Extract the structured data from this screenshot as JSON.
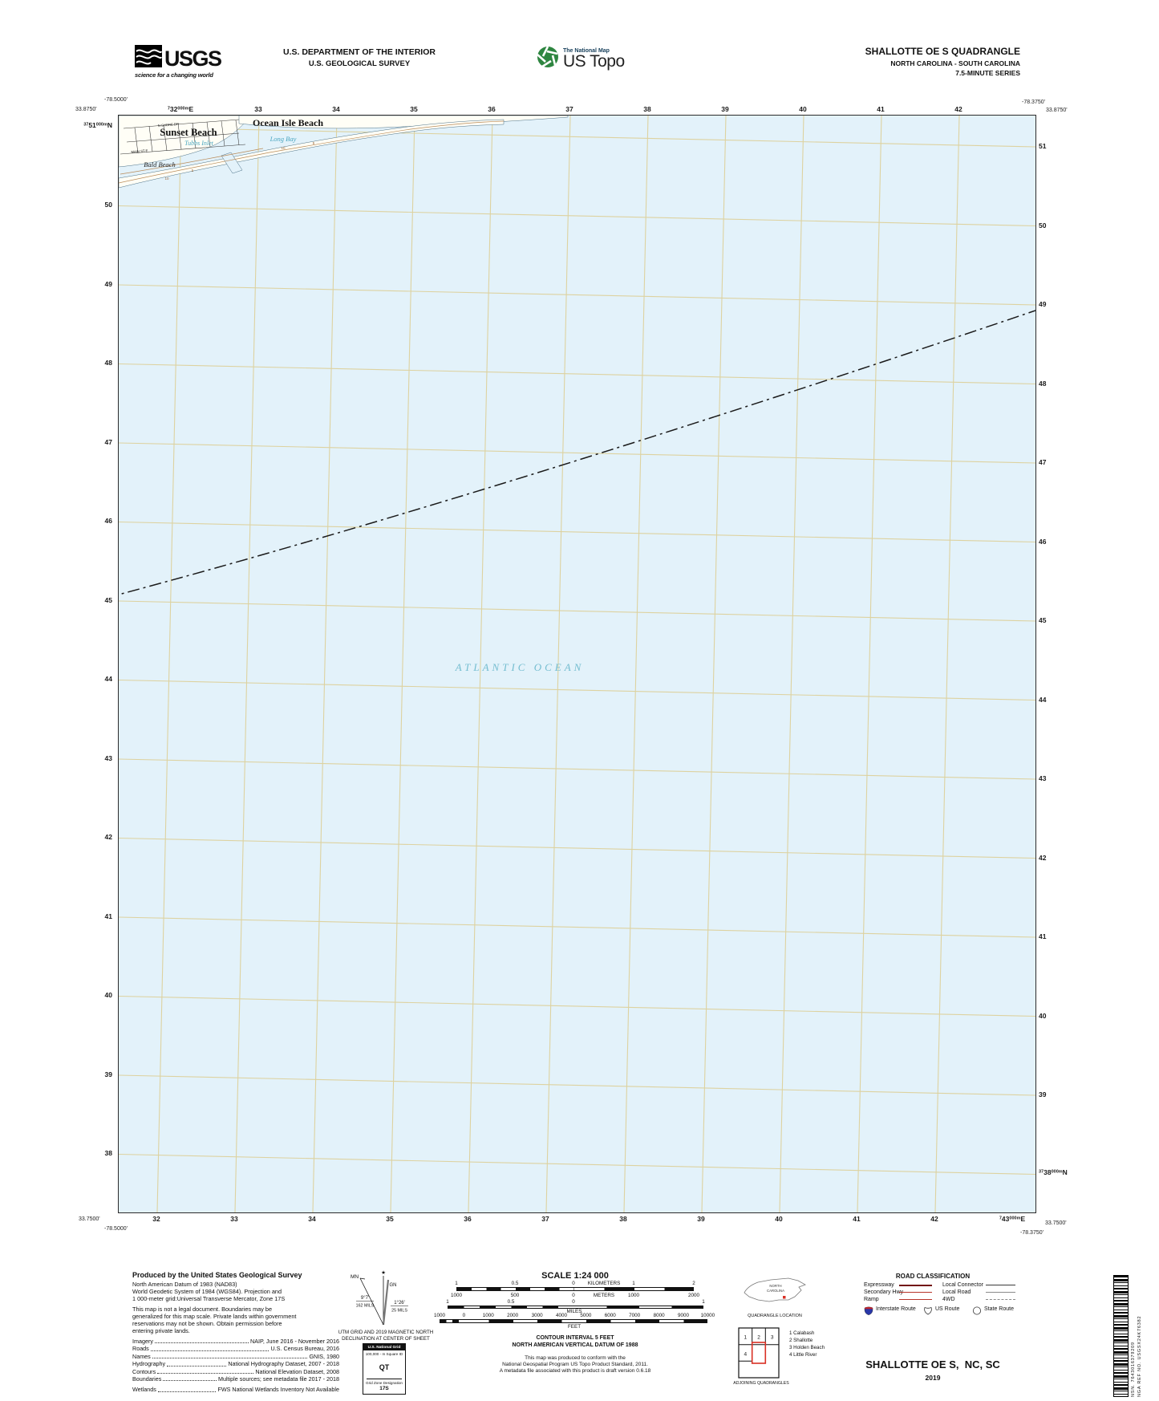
{
  "colors": {
    "ocean": "#e3f2fa",
    "grid_line": "#ddd2a0",
    "water_label": "#4aa6c0",
    "ocean_label": "#74bdd0",
    "contour": "#b98a58",
    "expressway": "#721313",
    "highway_red": "#b8342a",
    "interstate_blue": "#2937a8",
    "quad_red": "#d93025"
  },
  "header": {
    "usgs": {
      "wordmark": "USGS",
      "tagline": "science for a changing world"
    },
    "agency_line1": "U.S. DEPARTMENT OF THE INTERIOR",
    "agency_line2": "U.S. GEOLOGICAL SURVEY",
    "ustopo": {
      "overline": "The National Map",
      "wordmark": "US Topo"
    },
    "quad": {
      "line1": "SHALLOTTE OE S QUADRANGLE",
      "line2": "NORTH CAROLINA - SOUTH CAROLINA",
      "line3": "7.5-MINUTE SERIES"
    }
  },
  "map": {
    "corners": {
      "tl_lon": "-78.5000'",
      "tl_lat": "33.8750'",
      "tr_lon": "-78.3750'",
      "tr_lat": "33.8750'",
      "bl_lat": "33.7500'",
      "bl_lon": "-78.5000'",
      "br_lat": "33.7500'",
      "br_lon": "-78.3750'"
    },
    "grid": {
      "top_first": {
        "p": "7",
        "n": "32",
        "s": "000m",
        "u": "E"
      },
      "top_labels": [
        "33",
        "34",
        "35",
        "36",
        "37",
        "38",
        "39",
        "40",
        "41",
        "42"
      ],
      "bottom_labels": [
        "32",
        "33",
        "34",
        "35",
        "36",
        "37",
        "38",
        "39",
        "40",
        "41",
        "42"
      ],
      "bottom_last": {
        "p": "7",
        "n": "43",
        "s": "000m",
        "u": "E"
      },
      "left_first": {
        "p": "37",
        "n": "51",
        "s": "000m",
        "u": "N"
      },
      "left_labels": [
        "50",
        "49",
        "48",
        "47",
        "46",
        "45",
        "44",
        "43",
        "42",
        "41",
        "40",
        "39",
        "38"
      ],
      "right_labels": [
        "51",
        "50",
        "49",
        "48",
        "47",
        "46",
        "45",
        "44",
        "43",
        "42",
        "41",
        "40",
        "39"
      ],
      "right_last": {
        "p": "37",
        "n": "38",
        "s": "000m",
        "u": "N"
      }
    },
    "features": {
      "ocean_label": "ATLANTIC OCEAN",
      "place_sunset_beach": "Sunset Beach",
      "place_ocean_isle_beach": "Ocean Isle Beach",
      "water_long_bay": "Long Bay",
      "water_tubbs_inlet": "Tubbs Inlet",
      "beach_bald_beach": "Bald Beach",
      "road_n_shore_dr": "N SHORE DR",
      "road_main_st_e": "MAIN ST E",
      "contour_labels": [
        "10",
        "5",
        "10",
        "5"
      ]
    }
  },
  "footer": {
    "credits": {
      "title": "Produced by the United States Geological Survey",
      "datum_lines": [
        "North American Datum of 1983 (NAD83)",
        "World Geodetic System of 1984 (WGS84).  Projection and",
        "1 000-meter grid:Universal Transverse Mercator, Zone 17S"
      ],
      "legal_lines": [
        "This map is not a legal document. Boundaries may be",
        "generalized for this map scale. Private lands within government",
        "reservations may not be shown. Obtain permission before",
        "entering private lands."
      ],
      "sources": [
        {
          "label": "Imagery",
          "value": "NAIP, June 2016 - November 2016"
        },
        {
          "label": "Roads",
          "value": "U.S. Census Bureau, 2016"
        },
        {
          "label": "Names",
          "value": "GNIS, 1980"
        },
        {
          "label": "Hydrography",
          "value": "National Hydrography Dataset, 2007 - 2018"
        },
        {
          "label": "Contours",
          "value": "National Elevation Dataset, 2008"
        },
        {
          "label": "Boundaries",
          "value": "Multiple sources; see metadata file 2017 - 2018"
        }
      ],
      "wetlands": {
        "label": "Wetlands",
        "value": "FWS National Wetlands Inventory Not Available"
      }
    },
    "declination": {
      "star": "★",
      "mn": "MN",
      "gn": "GN",
      "left_deg": "9°7'",
      "left_mils": "162 MILS",
      "right_deg": "1°26'",
      "right_mils": "25 MILS",
      "caption1": "UTM GRID AND 2019 MAGNETIC NORTH",
      "caption2": "DECLINATION AT CENTER OF SHEET"
    },
    "usng": {
      "title": "U.S. National Grid",
      "sub": "100,000 - m Square ID",
      "square": "QT",
      "zone_label": "Grid Zone Designation",
      "zone": "17S"
    },
    "scale": {
      "title": "SCALE 1:24 000",
      "km_labels": [
        "1",
        "0.5",
        "0",
        "KILOMETERS",
        "1",
        "2"
      ],
      "m_labels": [
        "1000",
        "500",
        "0",
        "METERS",
        "1000",
        "2000"
      ],
      "mi_labels": [
        "1",
        "0.5",
        "0",
        "1"
      ],
      "mi_unit": "MILES",
      "ft_labels": [
        "1000",
        "0",
        "1000",
        "2000",
        "3000",
        "4000",
        "5000",
        "6000",
        "7000",
        "8000",
        "9000",
        "10000"
      ],
      "ft_unit": "FEET",
      "contour": "CONTOUR INTERVAL 5 FEET",
      "vdatum": "NORTH AMERICAN VERTICAL DATUM OF 1988",
      "note1": "This map was produced to conform with the",
      "note2": "National Geospatial Program US Topo Product Standard, 2011.",
      "note3": "A metadata file associated with this product is draft version 0.6.18"
    },
    "location": {
      "state_line1": "NORTH",
      "state_line2": "CAROLINA",
      "caption": "QUADRANGLE LOCATION"
    },
    "adjoining": {
      "cells": [
        "1",
        "2",
        "3",
        "4"
      ],
      "legend": [
        "1 Calabash",
        "2 Shallotte",
        "3 Holden Beach",
        "4 Little River"
      ],
      "caption": "ADJOINING QUADRANGLES"
    },
    "roads": {
      "title": "ROAD CLASSIFICATION",
      "rows": [
        {
          "l": "Expressway",
          "r": "Local Connector"
        },
        {
          "l": "Secondary Hwy",
          "r": "Local Road"
        },
        {
          "l": "Ramp",
          "r": "4WD"
        }
      ],
      "shields": [
        "Interstate Route",
        "US Route",
        "State Route"
      ]
    },
    "title_block": {
      "name": "SHALLOTTE OE S,  NC, SC",
      "year": "2019"
    },
    "barcode": {
      "nsn": "NSN. 7643016379209",
      "nga": "NGA REF NO. USGSX24K76382"
    }
  }
}
